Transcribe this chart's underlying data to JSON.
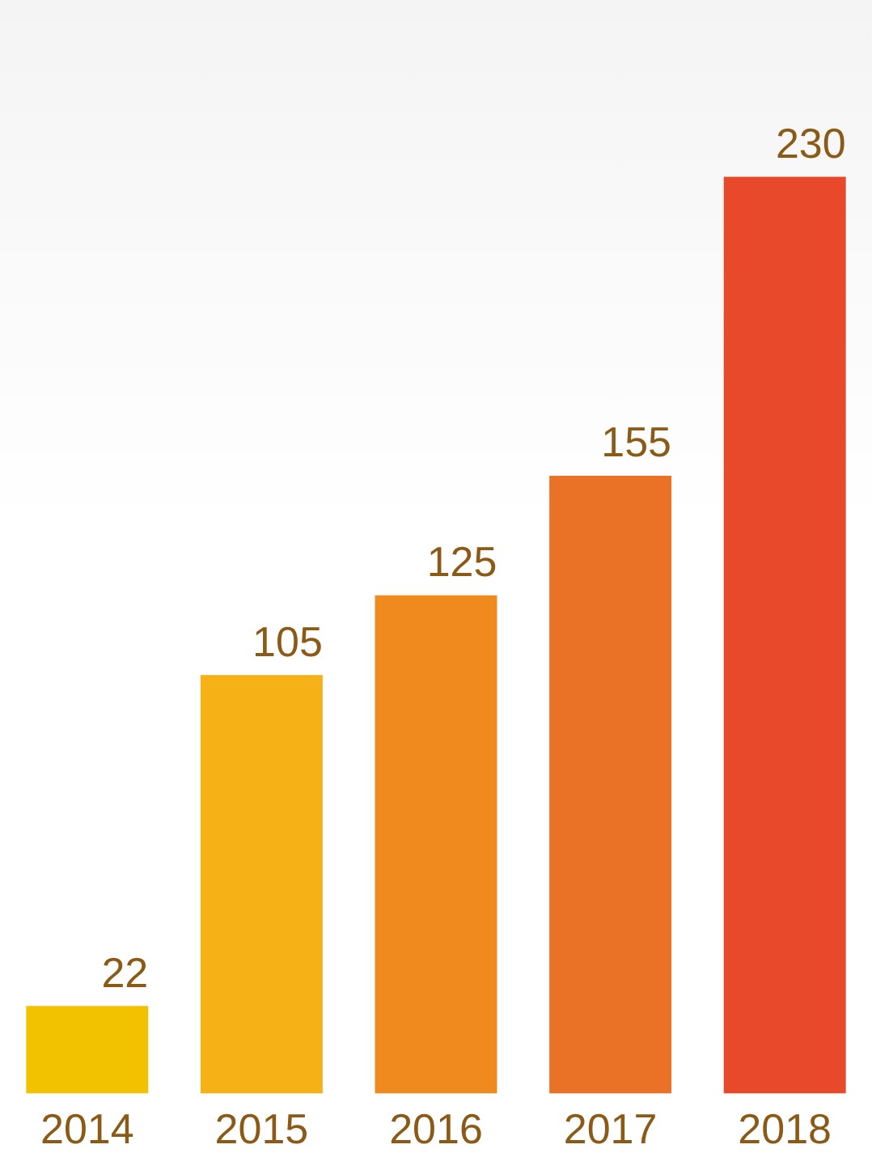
{
  "chart_data": {
    "type": "bar",
    "categories": [
      "2014",
      "2015",
      "2016",
      "2017",
      "2018"
    ],
    "values": [
      22,
      105,
      125,
      155,
      230
    ],
    "colors": [
      "#f2c200",
      "#f5b116",
      "#f08a1e",
      "#ea7226",
      "#e8492a"
    ],
    "data_labels": true,
    "grid": false,
    "legend": false,
    "tick_labels": "x"
  }
}
